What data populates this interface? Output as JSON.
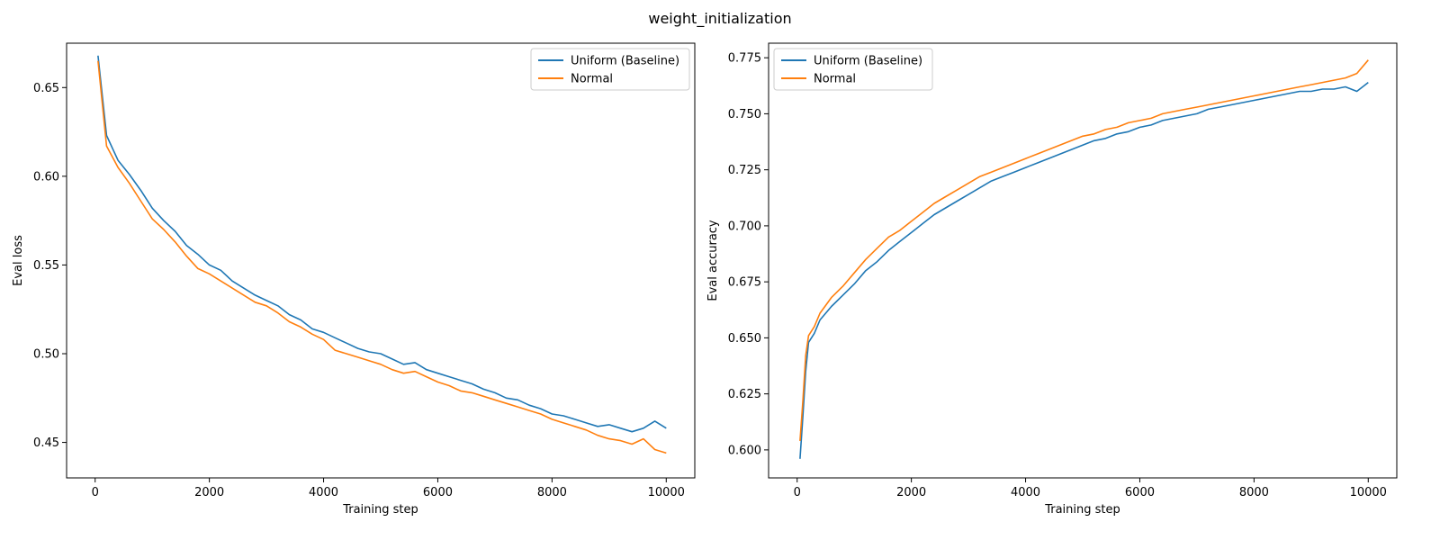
{
  "figure": {
    "title": "weight_initialization"
  },
  "colors": {
    "uniform": "#1f77b4",
    "normal": "#ff7f0e"
  },
  "chart_data": [
    {
      "type": "line",
      "xlabel": "Training step",
      "ylabel": "Eval loss",
      "xlim": [
        -500,
        10500
      ],
      "ylim": [
        0.43,
        0.675
      ],
      "xticks": [
        0,
        2000,
        4000,
        6000,
        8000,
        10000
      ],
      "yticks": [
        0.45,
        0.5,
        0.55,
        0.6,
        0.65
      ],
      "yticks_fmt": 2,
      "legend": "top-right",
      "series": [
        {
          "name": "Uniform (Baseline)",
          "color": "#1f77b4",
          "x": [
            50,
            200,
            400,
            600,
            800,
            1000,
            1200,
            1400,
            1600,
            1800,
            2000,
            2200,
            2400,
            2600,
            2800,
            3000,
            3200,
            3400,
            3600,
            3800,
            4000,
            4200,
            4400,
            4600,
            4800,
            5000,
            5200,
            5400,
            5600,
            5800,
            6000,
            6200,
            6400,
            6600,
            6800,
            7000,
            7200,
            7400,
            7600,
            7800,
            8000,
            8200,
            8400,
            8600,
            8800,
            9000,
            9200,
            9400,
            9600,
            9800,
            10000
          ],
          "y": [
            0.668,
            0.623,
            0.609,
            0.601,
            0.592,
            0.582,
            0.575,
            0.569,
            0.561,
            0.556,
            0.55,
            0.547,
            0.541,
            0.537,
            0.533,
            0.53,
            0.527,
            0.522,
            0.519,
            0.514,
            0.512,
            0.509,
            0.506,
            0.503,
            0.501,
            0.5,
            0.497,
            0.494,
            0.495,
            0.491,
            0.489,
            0.487,
            0.485,
            0.483,
            0.48,
            0.478,
            0.475,
            0.474,
            0.471,
            0.469,
            0.466,
            0.465,
            0.463,
            0.461,
            0.459,
            0.46,
            0.458,
            0.456,
            0.458,
            0.462,
            0.458
          ]
        },
        {
          "name": "Normal",
          "color": "#ff7f0e",
          "x": [
            50,
            200,
            400,
            600,
            800,
            1000,
            1200,
            1400,
            1600,
            1800,
            2000,
            2200,
            2400,
            2600,
            2800,
            3000,
            3200,
            3400,
            3600,
            3800,
            4000,
            4200,
            4400,
            4600,
            4800,
            5000,
            5200,
            5400,
            5600,
            5800,
            6000,
            6200,
            6400,
            6600,
            6800,
            7000,
            7200,
            7400,
            7600,
            7800,
            8000,
            8200,
            8400,
            8600,
            8800,
            9000,
            9200,
            9400,
            9600,
            9800,
            10000
          ],
          "y": [
            0.665,
            0.617,
            0.605,
            0.596,
            0.586,
            0.576,
            0.57,
            0.563,
            0.555,
            0.548,
            0.545,
            0.541,
            0.537,
            0.533,
            0.529,
            0.527,
            0.523,
            0.518,
            0.515,
            0.511,
            0.508,
            0.502,
            0.5,
            0.498,
            0.496,
            0.494,
            0.491,
            0.489,
            0.49,
            0.487,
            0.484,
            0.482,
            0.479,
            0.478,
            0.476,
            0.474,
            0.472,
            0.47,
            0.468,
            0.466,
            0.463,
            0.461,
            0.459,
            0.457,
            0.454,
            0.452,
            0.451,
            0.449,
            0.452,
            0.446,
            0.444
          ]
        }
      ]
    },
    {
      "type": "line",
      "xlabel": "Training step",
      "ylabel": "Eval accuracy",
      "xlim": [
        -500,
        10500
      ],
      "ylim": [
        0.5875,
        0.7815
      ],
      "xticks": [
        0,
        2000,
        4000,
        6000,
        8000,
        10000
      ],
      "yticks": [
        0.6,
        0.625,
        0.65,
        0.675,
        0.7,
        0.725,
        0.75,
        0.775
      ],
      "yticks_fmt": 3,
      "legend": "top-left",
      "series": [
        {
          "name": "Uniform (Baseline)",
          "color": "#1f77b4",
          "x": [
            50,
            100,
            150,
            200,
            300,
            400,
            600,
            800,
            1000,
            1200,
            1400,
            1600,
            1800,
            2000,
            2200,
            2400,
            2600,
            2800,
            3000,
            3200,
            3400,
            3600,
            3800,
            4000,
            4200,
            4400,
            4600,
            4800,
            5000,
            5200,
            5400,
            5600,
            5800,
            6000,
            6200,
            6400,
            6600,
            6800,
            7000,
            7200,
            7400,
            7600,
            7800,
            8000,
            8200,
            8400,
            8600,
            8800,
            9000,
            9200,
            9400,
            9600,
            9800,
            10000
          ],
          "y": [
            0.596,
            0.615,
            0.635,
            0.648,
            0.652,
            0.658,
            0.664,
            0.669,
            0.674,
            0.68,
            0.684,
            0.689,
            0.693,
            0.697,
            0.701,
            0.705,
            0.708,
            0.711,
            0.714,
            0.717,
            0.72,
            0.722,
            0.724,
            0.726,
            0.728,
            0.73,
            0.732,
            0.734,
            0.736,
            0.738,
            0.739,
            0.741,
            0.742,
            0.744,
            0.745,
            0.747,
            0.748,
            0.749,
            0.75,
            0.752,
            0.753,
            0.754,
            0.755,
            0.756,
            0.757,
            0.758,
            0.759,
            0.76,
            0.76,
            0.761,
            0.761,
            0.762,
            0.76,
            0.764
          ]
        },
        {
          "name": "Normal",
          "color": "#ff7f0e",
          "x": [
            50,
            100,
            150,
            200,
            300,
            400,
            600,
            800,
            1000,
            1200,
            1400,
            1600,
            1800,
            2000,
            2200,
            2400,
            2600,
            2800,
            3000,
            3200,
            3400,
            3600,
            3800,
            4000,
            4200,
            4400,
            4600,
            4800,
            5000,
            5200,
            5400,
            5600,
            5800,
            6000,
            6200,
            6400,
            6600,
            6800,
            7000,
            7200,
            7400,
            7600,
            7800,
            8000,
            8200,
            8400,
            8600,
            8800,
            9000,
            9200,
            9400,
            9600,
            9800,
            10000
          ],
          "y": [
            0.604,
            0.622,
            0.642,
            0.651,
            0.655,
            0.661,
            0.668,
            0.673,
            0.679,
            0.685,
            0.69,
            0.695,
            0.698,
            0.702,
            0.706,
            0.71,
            0.713,
            0.716,
            0.719,
            0.722,
            0.724,
            0.726,
            0.728,
            0.73,
            0.732,
            0.734,
            0.736,
            0.738,
            0.74,
            0.741,
            0.743,
            0.744,
            0.746,
            0.747,
            0.748,
            0.75,
            0.751,
            0.752,
            0.753,
            0.754,
            0.755,
            0.756,
            0.757,
            0.758,
            0.759,
            0.76,
            0.761,
            0.762,
            0.763,
            0.764,
            0.765,
            0.766,
            0.768,
            0.774
          ]
        }
      ]
    }
  ]
}
